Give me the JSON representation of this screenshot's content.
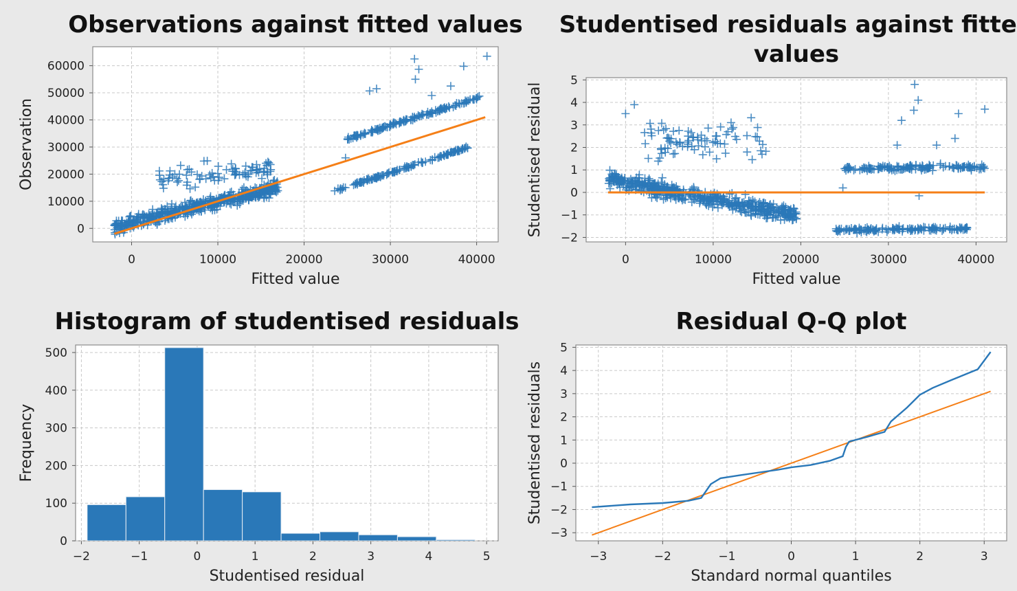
{
  "colors": {
    "series": "#2a78b8",
    "fit": "#f57f17",
    "background": "#e9e9e9",
    "plot_bg": "#ffffff"
  },
  "chart_data": [
    {
      "id": "obs_vs_fitted",
      "type": "scatter",
      "title": "Observations against fitted values",
      "xlabel": "Fitted value",
      "ylabel": "Observation",
      "xlim": [
        -4500,
        42500
      ],
      "ylim": [
        -5000,
        67000
      ],
      "xticks": [
        0,
        10000,
        20000,
        30000,
        40000
      ],
      "yticks": [
        0,
        10000,
        20000,
        30000,
        40000,
        50000,
        60000
      ],
      "grid": true,
      "marker": "+",
      "series": [
        {
          "role": "points",
          "clusters": [
            {
              "x": [
                -2000,
                17000
              ],
              "slope": 0.78,
              "intercept": 2000,
              "spread": 2500,
              "n": 520
            },
            {
              "x": [
                3000,
                16500
              ],
              "slope": 0.3,
              "intercept": 17000,
              "spread": 4200,
              "n": 85
            },
            {
              "x": [
                23500,
                39000
              ],
              "slope": 1.05,
              "intercept": -11000,
              "spread": 450,
              "n": 140
            },
            {
              "x": [
                25000,
                40500
              ],
              "slope": 1.0,
              "intercept": 8000,
              "spread": 600,
              "n": 150
            }
          ],
          "outliers": [
            {
              "x": 32800,
              "y": 62500
            },
            {
              "x": 33300,
              "y": 58700
            },
            {
              "x": 32900,
              "y": 55000
            },
            {
              "x": 38500,
              "y": 59800
            },
            {
              "x": 41200,
              "y": 63500
            },
            {
              "x": 34800,
              "y": 49000
            },
            {
              "x": 27600,
              "y": 50700
            },
            {
              "x": 28400,
              "y": 51500
            },
            {
              "x": 37000,
              "y": 52500
            },
            {
              "x": 24800,
              "y": 26000
            }
          ]
        },
        {
          "role": "fit-line",
          "x": [
            -2000,
            41000
          ],
          "y": [
            -2000,
            41000
          ]
        }
      ]
    },
    {
      "id": "resid_vs_fitted",
      "type": "scatter",
      "title": "Studentised residuals against fitted values",
      "xlabel": "Fitted value",
      "ylabel": "Studentised residual",
      "xlim": [
        -4500,
        43500
      ],
      "ylim": [
        -2.2,
        5.1
      ],
      "xticks": [
        0,
        10000,
        20000,
        30000,
        40000
      ],
      "yticks": [
        -2,
        -1,
        0,
        1,
        2,
        3,
        4,
        5
      ],
      "grid": true,
      "marker": "+",
      "series": [
        {
          "role": "points",
          "clusters": [
            {
              "x": [
                -2000,
                19500
              ],
              "slope": -7.5e-05,
              "intercept": 0.45,
              "spread": 0.35,
              "n": 520
            },
            {
              "x": [
                2000,
                16500
              ],
              "slope": 0,
              "intercept": 2.2,
              "spread": 0.9,
              "n": 85
            },
            {
              "x": [
                23500,
                39000
              ],
              "slope": 5.5e-06,
              "intercept": -1.82,
              "spread": 0.1,
              "n": 140
            },
            {
              "x": [
                25000,
                41000
              ],
              "slope": 4.5e-06,
              "intercept": 0.95,
              "spread": 0.12,
              "n": 150
            }
          ],
          "outliers": [
            {
              "x": 33000,
              "y": 4.8
            },
            {
              "x": 33400,
              "y": 4.1
            },
            {
              "x": 32900,
              "y": 3.65
            },
            {
              "x": 31500,
              "y": 3.2
            },
            {
              "x": 38000,
              "y": 3.5
            },
            {
              "x": 41000,
              "y": 3.7
            },
            {
              "x": 37600,
              "y": 2.4
            },
            {
              "x": 35500,
              "y": 2.1
            },
            {
              "x": 31000,
              "y": 2.1
            },
            {
              "x": 24800,
              "y": 0.2
            },
            {
              "x": 33500,
              "y": -0.15
            },
            {
              "x": 1000,
              "y": 3.9
            },
            {
              "x": 0,
              "y": 3.5
            }
          ]
        },
        {
          "role": "fit-line",
          "x": [
            -2000,
            41000
          ],
          "y": [
            0,
            0
          ]
        }
      ]
    },
    {
      "id": "histogram",
      "type": "bar",
      "title": "Histogram of studentised residuals",
      "xlabel": "Studentised residual",
      "ylabel": "Frequency",
      "xlim": [
        -2.1,
        5.2
      ],
      "ylim": [
        0,
        520
      ],
      "xticks": [
        -2,
        -1,
        0,
        1,
        2,
        3,
        4,
        5
      ],
      "yticks": [
        0,
        100,
        200,
        300,
        400,
        500
      ],
      "grid": true,
      "bin_edges": [
        -1.9,
        -1.23,
        -0.56,
        0.11,
        0.78,
        1.45,
        2.12,
        2.79,
        3.46,
        4.13,
        4.8
      ],
      "values": [
        96,
        117,
        513,
        136,
        130,
        20,
        24,
        16,
        11,
        3
      ]
    },
    {
      "id": "qq_plot",
      "type": "line",
      "title": "Residual Q-Q plot",
      "xlabel": "Standard normal quantiles",
      "ylabel": "Studentised residuals",
      "xlim": [
        -3.35,
        3.35
      ],
      "ylim": [
        -3.35,
        5.1
      ],
      "xticks": [
        -3,
        -2,
        -1,
        0,
        1,
        2,
        3
      ],
      "yticks": [
        -3,
        -2,
        -1,
        0,
        1,
        2,
        3,
        4,
        5
      ],
      "grid": true,
      "series": [
        {
          "role": "sample-quantiles",
          "x": [
            -3.1,
            -2.5,
            -2.0,
            -1.6,
            -1.4,
            -1.25,
            -1.1,
            -0.8,
            -0.5,
            -0.2,
            0.0,
            0.3,
            0.6,
            0.8,
            0.85,
            0.9,
            1.2,
            1.45,
            1.55,
            1.8,
            2.0,
            2.2,
            2.5,
            2.9,
            3.1
          ],
          "y": [
            -1.9,
            -1.78,
            -1.72,
            -1.62,
            -1.5,
            -0.9,
            -0.65,
            -0.52,
            -0.4,
            -0.28,
            -0.18,
            -0.08,
            0.1,
            0.3,
            0.7,
            0.93,
            1.15,
            1.35,
            1.8,
            2.4,
            2.95,
            3.25,
            3.6,
            4.05,
            4.8
          ]
        },
        {
          "role": "reference-line",
          "x": [
            -3.1,
            3.1
          ],
          "y": [
            -3.1,
            3.1
          ]
        }
      ]
    }
  ]
}
